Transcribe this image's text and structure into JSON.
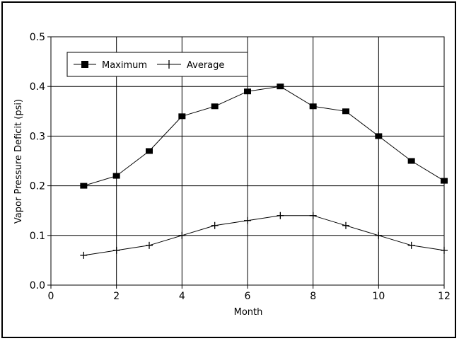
{
  "chart_data": {
    "type": "line",
    "title": "",
    "xlabel": "Month",
    "ylabel": "Vapor Pressure Deficit (psi)",
    "xlim": [
      0,
      12
    ],
    "ylim": [
      0,
      0.5
    ],
    "x_ticks": [
      "0",
      "2",
      "4",
      "6",
      "8",
      "10",
      "12"
    ],
    "y_ticks": [
      "0.0",
      "0.1",
      "0.2",
      "0.3",
      "0.4",
      "0.5"
    ],
    "grid": true,
    "legend_position": "top-left",
    "x": [
      1,
      2,
      3,
      4,
      5,
      6,
      7,
      8,
      9,
      10,
      11,
      12
    ],
    "series": [
      {
        "name": "Maximum",
        "marker": "square",
        "values": [
          0.2,
          0.22,
          0.27,
          0.34,
          0.36,
          0.39,
          0.4,
          0.36,
          0.35,
          0.3,
          0.25,
          0.21
        ]
      },
      {
        "name": "Average",
        "marker": "plus",
        "values": [
          0.06,
          0.07,
          0.08,
          0.1,
          0.12,
          0.13,
          0.14,
          0.14,
          0.12,
          0.1,
          0.08,
          0.07
        ]
      }
    ]
  }
}
